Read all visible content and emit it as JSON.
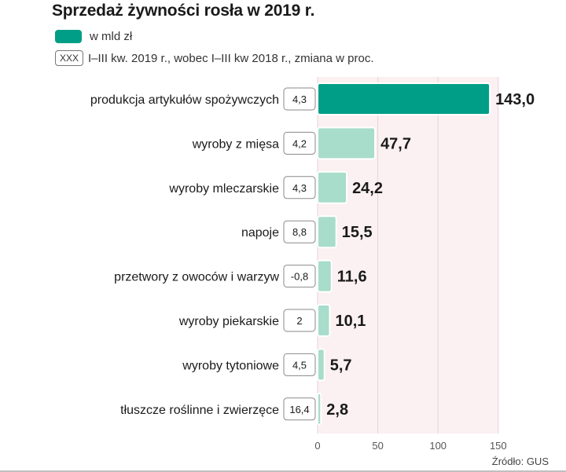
{
  "title": "Sprzedaż żywności rosła w 2019 r.",
  "legend": {
    "value_label": "w mld zł",
    "change_box": "XXX",
    "change_label": "I–III kw. 2019 r., wobec I–III kw 2018 r., zmiana w proc."
  },
  "source": "Źródło: GUS",
  "colors": {
    "highlight": "#009e87",
    "bar": "#a8dccb",
    "plot_bg": "#fbf0f2"
  },
  "chart_data": {
    "type": "bar",
    "orientation": "horizontal",
    "categories": [
      "produkcja artykułów spożywczych",
      "wyroby z mięsa",
      "wyroby mleczarskie",
      "napoje",
      "przetwory z owoców i warzyw",
      "wyroby piekarskie",
      "wyroby tytoniowe",
      "tłuszcze roślinne i zwierzęce"
    ],
    "values": [
      143.0,
      47.7,
      24.2,
      15.5,
      11.6,
      10.1,
      5.7,
      2.8
    ],
    "value_labels": [
      "143,0",
      "47,7",
      "24,2",
      "15,5",
      "11,6",
      "10,1",
      "5,7",
      "2,8"
    ],
    "change_pct": [
      "4,3",
      "4,2",
      "4,3",
      "8,8",
      "-0,8",
      "2",
      "4,5",
      "16,4"
    ],
    "xlim": [
      0,
      150
    ],
    "xticks": [
      0,
      50,
      100,
      150
    ],
    "xtick_labels": [
      "0",
      "50",
      "100",
      "150"
    ],
    "grid": true
  }
}
